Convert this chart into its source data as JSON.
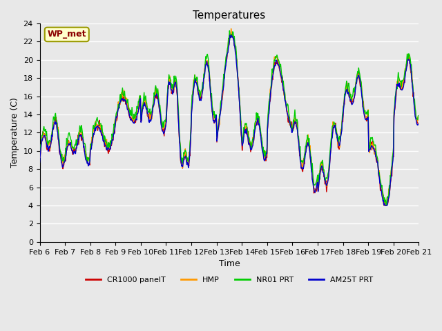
{
  "title": "Temperatures",
  "xlabel": "Time",
  "ylabel": "Temperature (C)",
  "ylim": [
    0,
    24
  ],
  "yticks": [
    0,
    2,
    4,
    6,
    8,
    10,
    12,
    14,
    16,
    18,
    20,
    22,
    24
  ],
  "series_colors": {
    "CR1000 panelT": "#cc0000",
    "HMP": "#ff9900",
    "NR01 PRT": "#00cc00",
    "AM25T PRT": "#0000cc"
  },
  "legend_labels": [
    "CR1000 panelT",
    "HMP",
    "NR01 PRT",
    "AM25T PRT"
  ],
  "annotation_text": "WP_met",
  "plot_bg_color": "#e8e8e8",
  "grid_color": "#ffffff",
  "xtick_labels": [
    "Feb 6",
    "Feb 7",
    "Feb 8",
    "Feb 9",
    "Feb 10",
    "Feb 11",
    "Feb 12",
    "Feb 13",
    "Feb 14",
    "Feb 15",
    "Feb 16",
    "Feb 17",
    "Feb 18",
    "Feb 19",
    "Feb 20",
    "Feb 21"
  ],
  "num_days": 15,
  "title_fontsize": 11,
  "label_fontsize": 9,
  "tick_fontsize": 8
}
